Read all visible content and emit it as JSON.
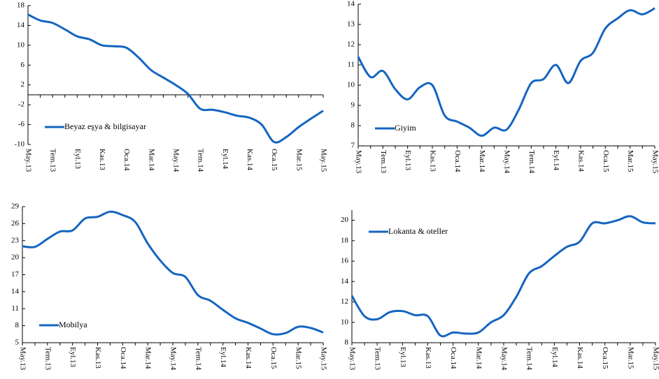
{
  "chart_data": [
    {
      "type": "line",
      "legend": "lower left",
      "categories": [
        "May.13",
        null,
        "Tem.13",
        null,
        "Eyl.13",
        null,
        "Kas.13",
        null,
        "Oca.14",
        null,
        "Mar.14",
        null,
        "May.14",
        null,
        "Tem.14",
        null,
        "Eyl.14",
        null,
        "Kas.14",
        null,
        "Oca.15",
        null,
        "Mar.15",
        null,
        "May.15"
      ],
      "series": [
        {
          "name": "Beyaz eşya & bilgisayar",
          "color": "#1565c0",
          "values": [
            16.2,
            15.0,
            14.5,
            13.2,
            11.8,
            11.2,
            10.0,
            9.8,
            9.5,
            7.5,
            5.0,
            3.5,
            2.0,
            0.2,
            -2.8,
            -3.0,
            -3.5,
            -4.2,
            -4.6,
            -6.0,
            -9.5,
            -8.5,
            -6.5,
            -4.8,
            -3.2
          ]
        }
      ],
      "ylim": [
        -10,
        18
      ],
      "yticks": [
        -10,
        -6,
        -2,
        2,
        6,
        10,
        14,
        18
      ]
    },
    {
      "type": "line",
      "legend": "lower left",
      "categories": [
        "May.13",
        null,
        "Tem.13",
        null,
        "Eyl.13",
        null,
        "Kas.13",
        null,
        "Oca.14",
        null,
        "Mar.14",
        null,
        "May.14",
        null,
        "Tem.14",
        null,
        "Eyl.14",
        null,
        "Kas.14",
        null,
        "Oca.15",
        null,
        "Mar.15",
        null,
        "May.15"
      ],
      "series": [
        {
          "name": "Giyim",
          "color": "#1565c0",
          "values": [
            11.4,
            10.4,
            10.7,
            9.8,
            9.3,
            9.9,
            10.0,
            8.5,
            8.2,
            7.9,
            7.5,
            7.9,
            7.8,
            8.8,
            10.1,
            10.3,
            11.0,
            10.1,
            11.2,
            11.6,
            12.8,
            13.3,
            13.7,
            13.5,
            13.8
          ]
        }
      ],
      "ylim": [
        7,
        14
      ],
      "yticks": [
        7,
        8,
        9,
        10,
        11,
        12,
        13,
        14
      ]
    },
    {
      "type": "line",
      "legend": "lower left",
      "categories": [
        "May.13",
        null,
        "Tem.13",
        null,
        "Eyl.13",
        null,
        "Kas.13",
        null,
        "Oca.14",
        null,
        "Mar.14",
        null,
        "May.14",
        null,
        "Tem.14",
        null,
        "Eyl.14",
        null,
        "Kas.14",
        null,
        "Oca.15",
        null,
        "Mar.15",
        null,
        "May.15"
      ],
      "series": [
        {
          "name": "Mobilya",
          "color": "#1565c0",
          "values": [
            22.0,
            21.9,
            23.3,
            24.6,
            24.8,
            26.9,
            27.2,
            28.1,
            27.5,
            26.3,
            22.5,
            19.5,
            17.3,
            16.6,
            13.4,
            12.4,
            10.8,
            9.3,
            8.5,
            7.5,
            6.5,
            6.7,
            7.8,
            7.6,
            6.8
          ]
        }
      ],
      "ylim": [
        5,
        29
      ],
      "yticks": [
        5,
        8,
        11,
        14,
        17,
        20,
        23,
        26,
        29
      ]
    },
    {
      "type": "line",
      "legend": "upper left",
      "categories": [
        "May.13",
        null,
        "Tem.13",
        null,
        "Eyl.13",
        null,
        "Kas.13",
        null,
        "Oca.14",
        null,
        "Mar.14",
        null,
        "May.14",
        null,
        "Tem.14",
        null,
        "Eyl.14",
        null,
        "Kas.14",
        null,
        "Oca.15",
        null,
        "Mar.15",
        null,
        "May.15"
      ],
      "series": [
        {
          "name": "Lokanta & oteller",
          "color": "#1565c0",
          "values": [
            12.6,
            10.6,
            10.3,
            11.0,
            11.1,
            10.7,
            10.6,
            8.7,
            9.0,
            8.9,
            9.0,
            10.0,
            10.7,
            12.5,
            14.8,
            15.5,
            16.5,
            17.4,
            17.9,
            19.7,
            19.7,
            20.0,
            20.4,
            19.8,
            19.7
          ]
        }
      ],
      "ylim": [
        8,
        21
      ],
      "yticks": [
        8,
        10,
        12,
        14,
        16,
        18,
        20
      ]
    }
  ]
}
